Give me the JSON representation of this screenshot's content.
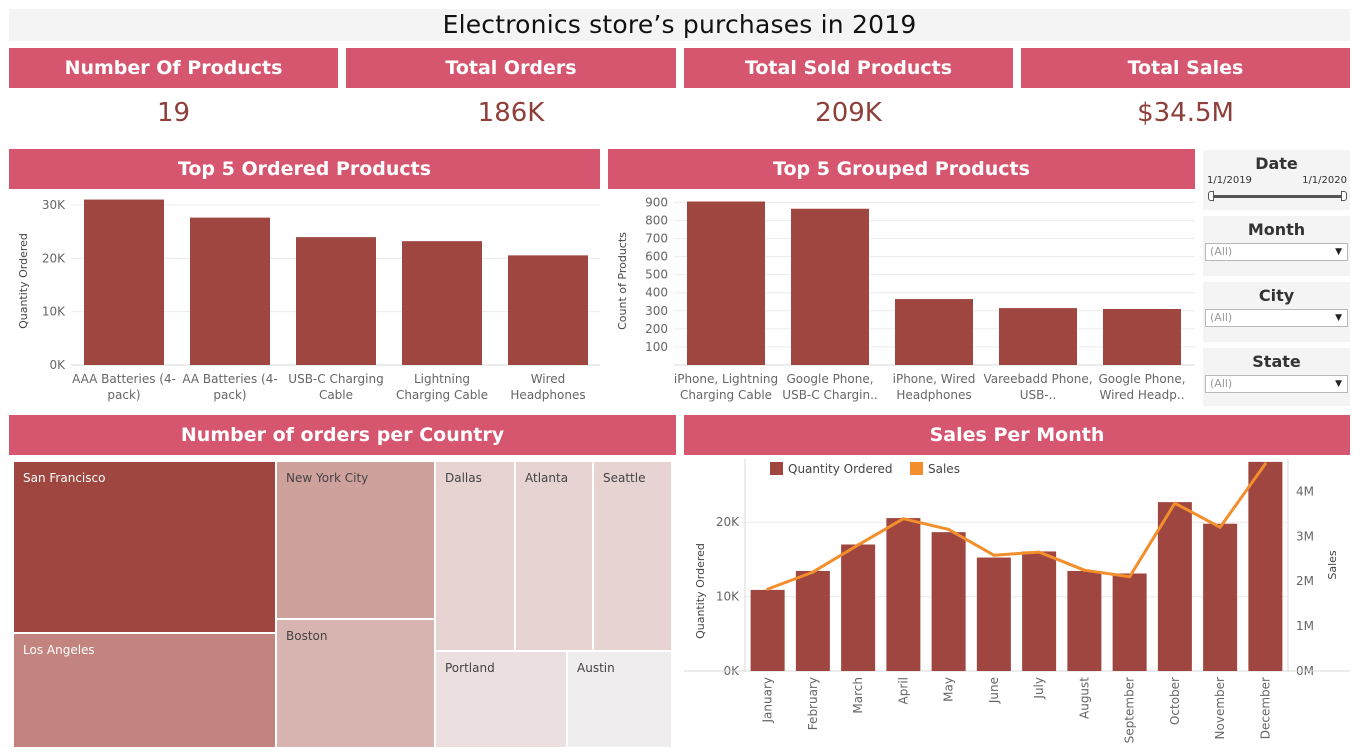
{
  "dashboard_title": "Electronics store’s purchases in 2019",
  "kpis": [
    {
      "label": "Number Of Products",
      "value": "19"
    },
    {
      "label": "Total Orders",
      "value": "186K"
    },
    {
      "label": "Total Sold Products",
      "value": "209K"
    },
    {
      "label": "Total Sales",
      "value": "$34.5M"
    }
  ],
  "colors": {
    "header": "#d6566f",
    "bar": "#9e463f",
    "line": "#f28e2b",
    "value_text": "#8e3f3a"
  },
  "filters": {
    "date": {
      "title": "Date",
      "start": "1/1/2019",
      "end": "1/1/2020"
    },
    "month": {
      "title": "Month",
      "selected": "(All)"
    },
    "city": {
      "title": "City",
      "selected": "(All)"
    },
    "state": {
      "title": "State",
      "selected": "(All)"
    }
  },
  "sections": {
    "top_ordered": "Top 5 Ordered Products",
    "top_grouped": "Top 5 Grouped Products",
    "orders_country": "Number of orders per Country",
    "sales_month": "Sales Per Month"
  },
  "chart_data": [
    {
      "type": "bar",
      "title": "Top 5 Ordered Products",
      "ylabel": "Quantity Ordered",
      "categories": [
        "AAA Batteries (4-pack)",
        "AA Batteries (4-pack)",
        "USB-C Charging Cable",
        "Lightning Charging Cable",
        "Wired Headphones"
      ],
      "category_lines": [
        [
          "AAA Batteries (4-",
          "pack)"
        ],
        [
          "AA Batteries (4-",
          "pack)"
        ],
        [
          "USB-C Charging",
          "Cable"
        ],
        [
          "Lightning",
          "Charging Cable"
        ],
        [
          "Wired",
          "Headphones"
        ]
      ],
      "values": [
        31017,
        27635,
        23975,
        23217,
        20557
      ],
      "yticks": [
        0,
        10000,
        20000,
        30000
      ],
      "ytick_labels": [
        "0K",
        "10K",
        "20K",
        "30K"
      ],
      "ylim": [
        0,
        31500
      ],
      "grid": true
    },
    {
      "type": "bar",
      "title": "Top 5 Grouped Products",
      "ylabel": "Count of Products",
      "category_lines": [
        [
          "iPhone, Lightning",
          "Charging Cable"
        ],
        [
          "Google Phone,",
          "USB-C Chargin.."
        ],
        [
          "iPhone, Wired",
          "Headphones"
        ],
        [
          "Vareebadd Phone,",
          "USB-.."
        ],
        [
          "Google Phone,",
          "Wired Headp.."
        ]
      ],
      "values": [
        905,
        865,
        365,
        315,
        310
      ],
      "yticks": [
        100,
        200,
        300,
        400,
        500,
        600,
        700,
        800,
        900
      ],
      "ytick_labels": [
        "100",
        "200",
        "300",
        "400",
        "500",
        "600",
        "700",
        "800",
        "900"
      ],
      "ylim": [
        0,
        930
      ],
      "grid": true
    },
    {
      "type": "heatmap",
      "title": "Number of orders per Country",
      "cells": [
        {
          "label": "San Francisco"
        },
        {
          "label": "Los Angeles"
        },
        {
          "label": "New York City"
        },
        {
          "label": "Boston"
        },
        {
          "label": "Dallas"
        },
        {
          "label": "Atlanta"
        },
        {
          "label": "Seattle"
        },
        {
          "label": "Portland"
        },
        {
          "label": "Austin"
        }
      ]
    },
    {
      "type": "bar",
      "title": "Sales Per Month",
      "categories": [
        "January",
        "February",
        "March",
        "April",
        "May",
        "June",
        "July",
        "August",
        "September",
        "October",
        "November",
        "December"
      ],
      "series": [
        {
          "name": "Quantity Ordered",
          "type": "bar",
          "axis": "left",
          "values": [
            10903,
            13449,
            17005,
            20558,
            18667,
            15253,
            16072,
            13448,
            13109,
            22703,
            19798,
            28114
          ]
        },
        {
          "name": "Sales",
          "type": "line",
          "axis": "right",
          "values": [
            1822257,
            2202022,
            2807100,
            3390670,
            3152607,
            2577802,
            2647776,
            2244468,
            2097560,
            3736727,
            3199603,
            4613443
          ]
        }
      ],
      "ylabel": "Quantity Ordered",
      "ylabel_right": "Sales",
      "yticks": [
        0,
        10000,
        20000
      ],
      "ytick_labels": [
        "0K",
        "10K",
        "20K"
      ],
      "ylim": [
        0,
        28500
      ],
      "yticks_right": [
        0,
        1000000,
        2000000,
        3000000,
        4000000
      ],
      "ytick_labels_right": [
        "0M",
        "1M",
        "2M",
        "3M",
        "4M"
      ],
      "ylim_right": [
        0,
        4720000
      ],
      "legend": "top-left"
    }
  ]
}
